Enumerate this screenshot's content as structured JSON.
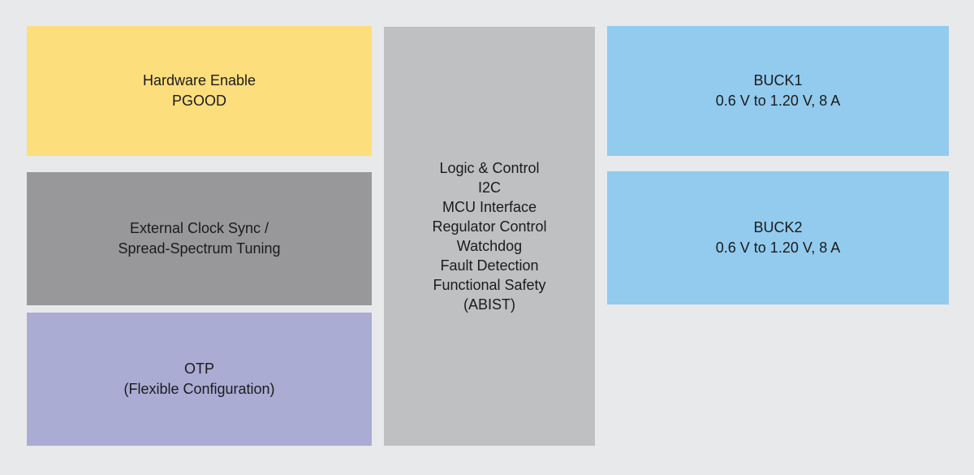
{
  "colors": {
    "background": "#E8E9EB",
    "text": "#1B1B1B",
    "enable_block": "#FDDE7D",
    "clock_block": "#98989A",
    "otp_block": "#AAACD4",
    "logic_block": "#BFC0C2",
    "buck_block": "#92CBEE"
  },
  "blocks": {
    "hardware_enable": {
      "color": "#FDDE7D",
      "lines": [
        "Hardware Enable",
        "PGOOD"
      ]
    },
    "external_clock": {
      "color": "#98989A",
      "lines": [
        "External Clock Sync /",
        "Spread-Spectrum Tuning"
      ]
    },
    "otp": {
      "color": "#AAACD4",
      "lines": [
        "OTP",
        "(Flexible Configuration)"
      ]
    },
    "logic_control": {
      "color": "#BFC0C2",
      "lines": [
        "Logic & Control",
        "I2C",
        "MCU Interface",
        "Regulator Control",
        "Watchdog",
        "Fault Detection",
        "Functional Safety",
        "(ABIST)"
      ]
    },
    "buck1": {
      "color": "#92CBEE",
      "lines": [
        "BUCK1",
        "0.6 V to 1.20 V, 8 A"
      ]
    },
    "buck2": {
      "color": "#92CBEE",
      "lines": [
        "BUCK2",
        "0.6 V to 1.20 V, 8 A"
      ]
    }
  }
}
